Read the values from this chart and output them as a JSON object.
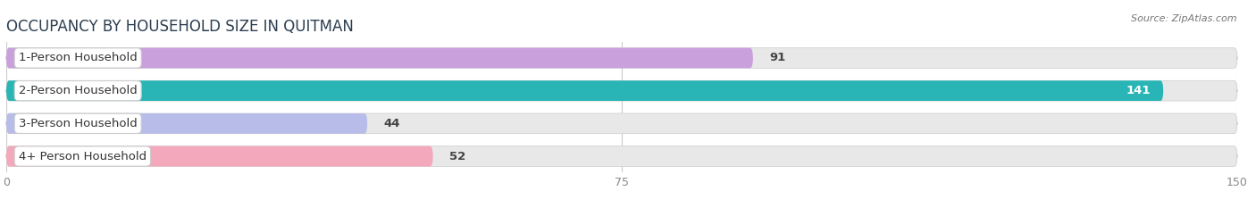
{
  "title": "OCCUPANCY BY HOUSEHOLD SIZE IN QUITMAN",
  "source": "Source: ZipAtlas.com",
  "categories": [
    "1-Person Household",
    "2-Person Household",
    "3-Person Household",
    "4+ Person Household"
  ],
  "values": [
    91,
    141,
    44,
    52
  ],
  "bar_colors": [
    "#c9a0dc",
    "#29b5b5",
    "#b8bce8",
    "#f4a8bc"
  ],
  "xlim": [
    0,
    150
  ],
  "xticks": [
    0,
    75,
    150
  ],
  "bar_bg_color": "#e8e8e8",
  "bar_height": 0.62,
  "title_fontsize": 12,
  "label_fontsize": 9.5,
  "tick_fontsize": 9,
  "value_fontsize": 9.5
}
